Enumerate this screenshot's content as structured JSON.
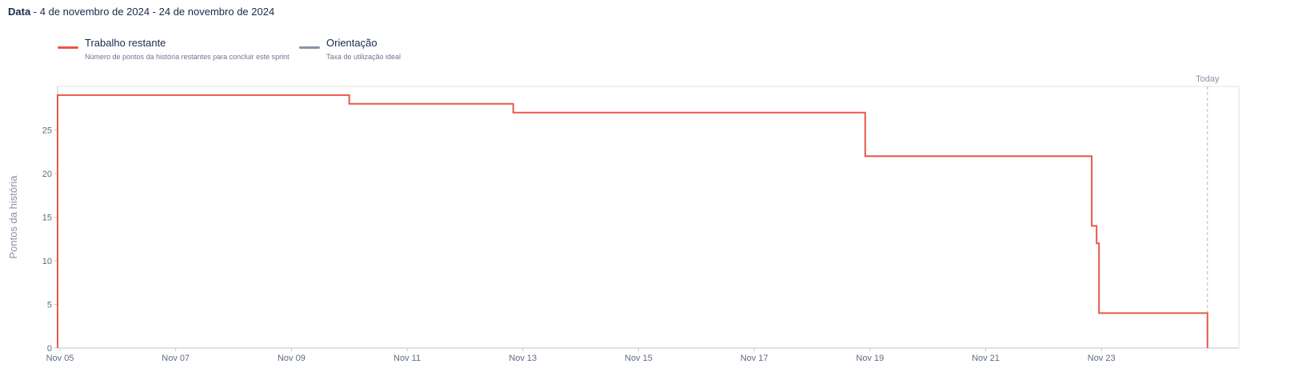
{
  "header": {
    "label": "Data",
    "separator": " - ",
    "range": "4 de novembro de 2024 - 24 de novembro de 2024"
  },
  "legend": [
    {
      "title": "Trabalho restante",
      "description": "Número de pontos da história restantes para concluir este sprint",
      "color": "#e8584a"
    },
    {
      "title": "Orientação",
      "description": "Taxa de utilização ideal",
      "color": "#8993a4"
    }
  ],
  "chart_data": {
    "type": "line",
    "ylabel": "Pontos da história",
    "xlabel": "",
    "today_label": "Today",
    "ylim": [
      0,
      30
    ],
    "y_ticks": [
      0,
      5,
      10,
      15,
      20,
      25
    ],
    "xlim": [
      "2024-11-04T23:00",
      "2024-11-25T09:00"
    ],
    "x_ticks": [
      "2024-11-05",
      "2024-11-07",
      "2024-11-09",
      "2024-11-11",
      "2024-11-13",
      "2024-11-15",
      "2024-11-17",
      "2024-11-19",
      "2024-11-21",
      "2024-11-23"
    ],
    "x_tick_labels": [
      "Nov 05",
      "Nov 07",
      "Nov 09",
      "Nov 11",
      "Nov 13",
      "Nov 15",
      "Nov 17",
      "Nov 19",
      "Nov 21",
      "Nov 23"
    ],
    "today": "2024-11-24T20:00",
    "grid": false,
    "series": [
      {
        "name": "Trabalho restante",
        "color": "#e8584a",
        "step": true,
        "points": [
          {
            "x": "2024-11-04T23:00",
            "y": 0
          },
          {
            "x": "2024-11-04T23:00",
            "y": 29
          },
          {
            "x": "2024-11-10T00:00",
            "y": 28
          },
          {
            "x": "2024-11-12T20:00",
            "y": 27
          },
          {
            "x": "2024-11-18T22:00",
            "y": 22
          },
          {
            "x": "2024-11-22T20:00",
            "y": 14
          },
          {
            "x": "2024-11-22T22:00",
            "y": 12
          },
          {
            "x": "2024-11-22T23:00",
            "y": 4
          },
          {
            "x": "2024-11-24T20:00",
            "y": 0
          }
        ]
      }
    ]
  }
}
